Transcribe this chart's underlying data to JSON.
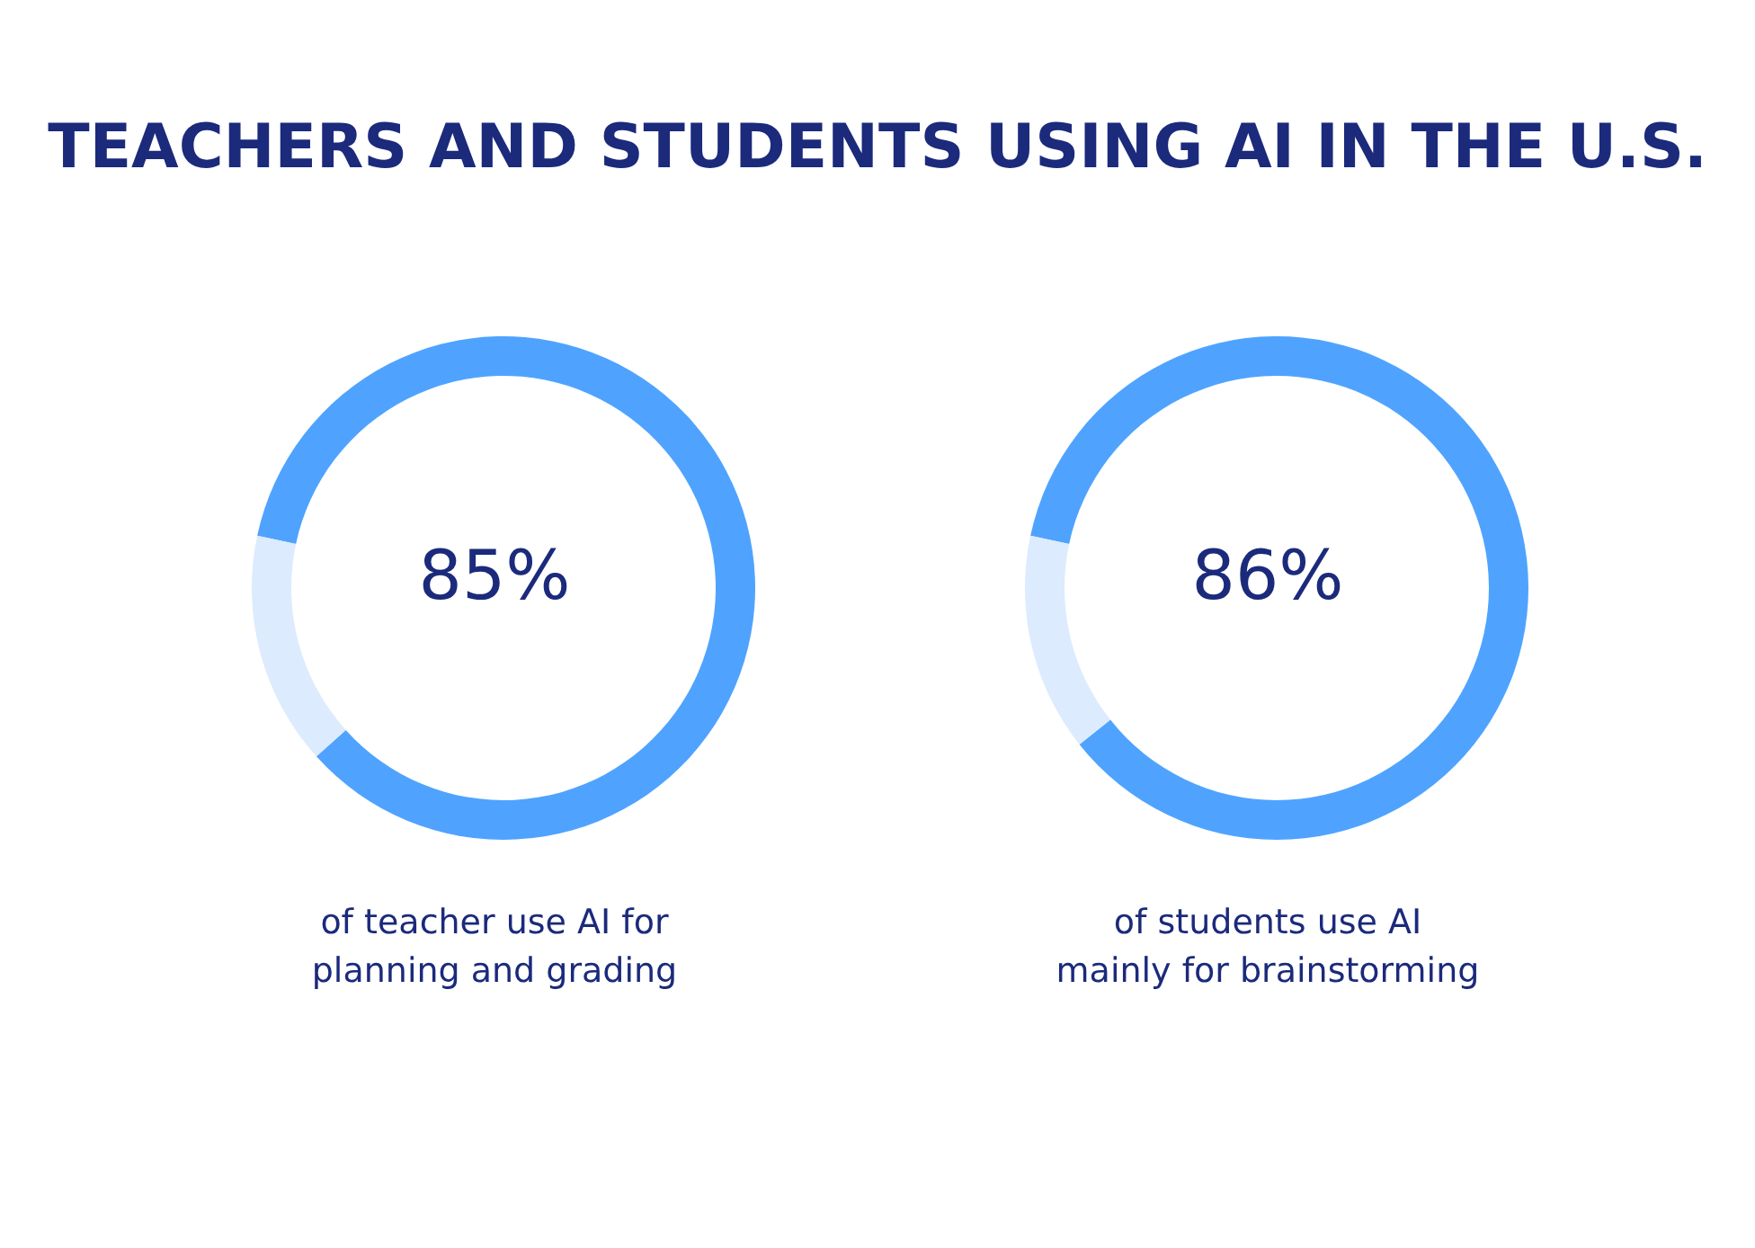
{
  "chart_data": [
    {
      "type": "donut",
      "title": "TEACHERS AND STUDENTS USING AI IN THE U.S.",
      "categories": [
        null,
        null
      ],
      "values": [
        85,
        15
      ],
      "colors": [
        "#4fa3ff",
        "#dcebfd"
      ],
      "value_labels": [
        "85%",
        null
      ],
      "annotations": [
        "of teacher use AI for planning and grading"
      ]
    },
    {
      "type": "donut",
      "categories": [
        null,
        null
      ],
      "values": [
        86,
        14
      ],
      "colors": [
        "#4fa3ff",
        "#dcebfd"
      ],
      "value_labels": [
        "86%",
        null
      ],
      "annotations": [
        "of students use AI mainly for brainstorming"
      ]
    }
  ]
}
